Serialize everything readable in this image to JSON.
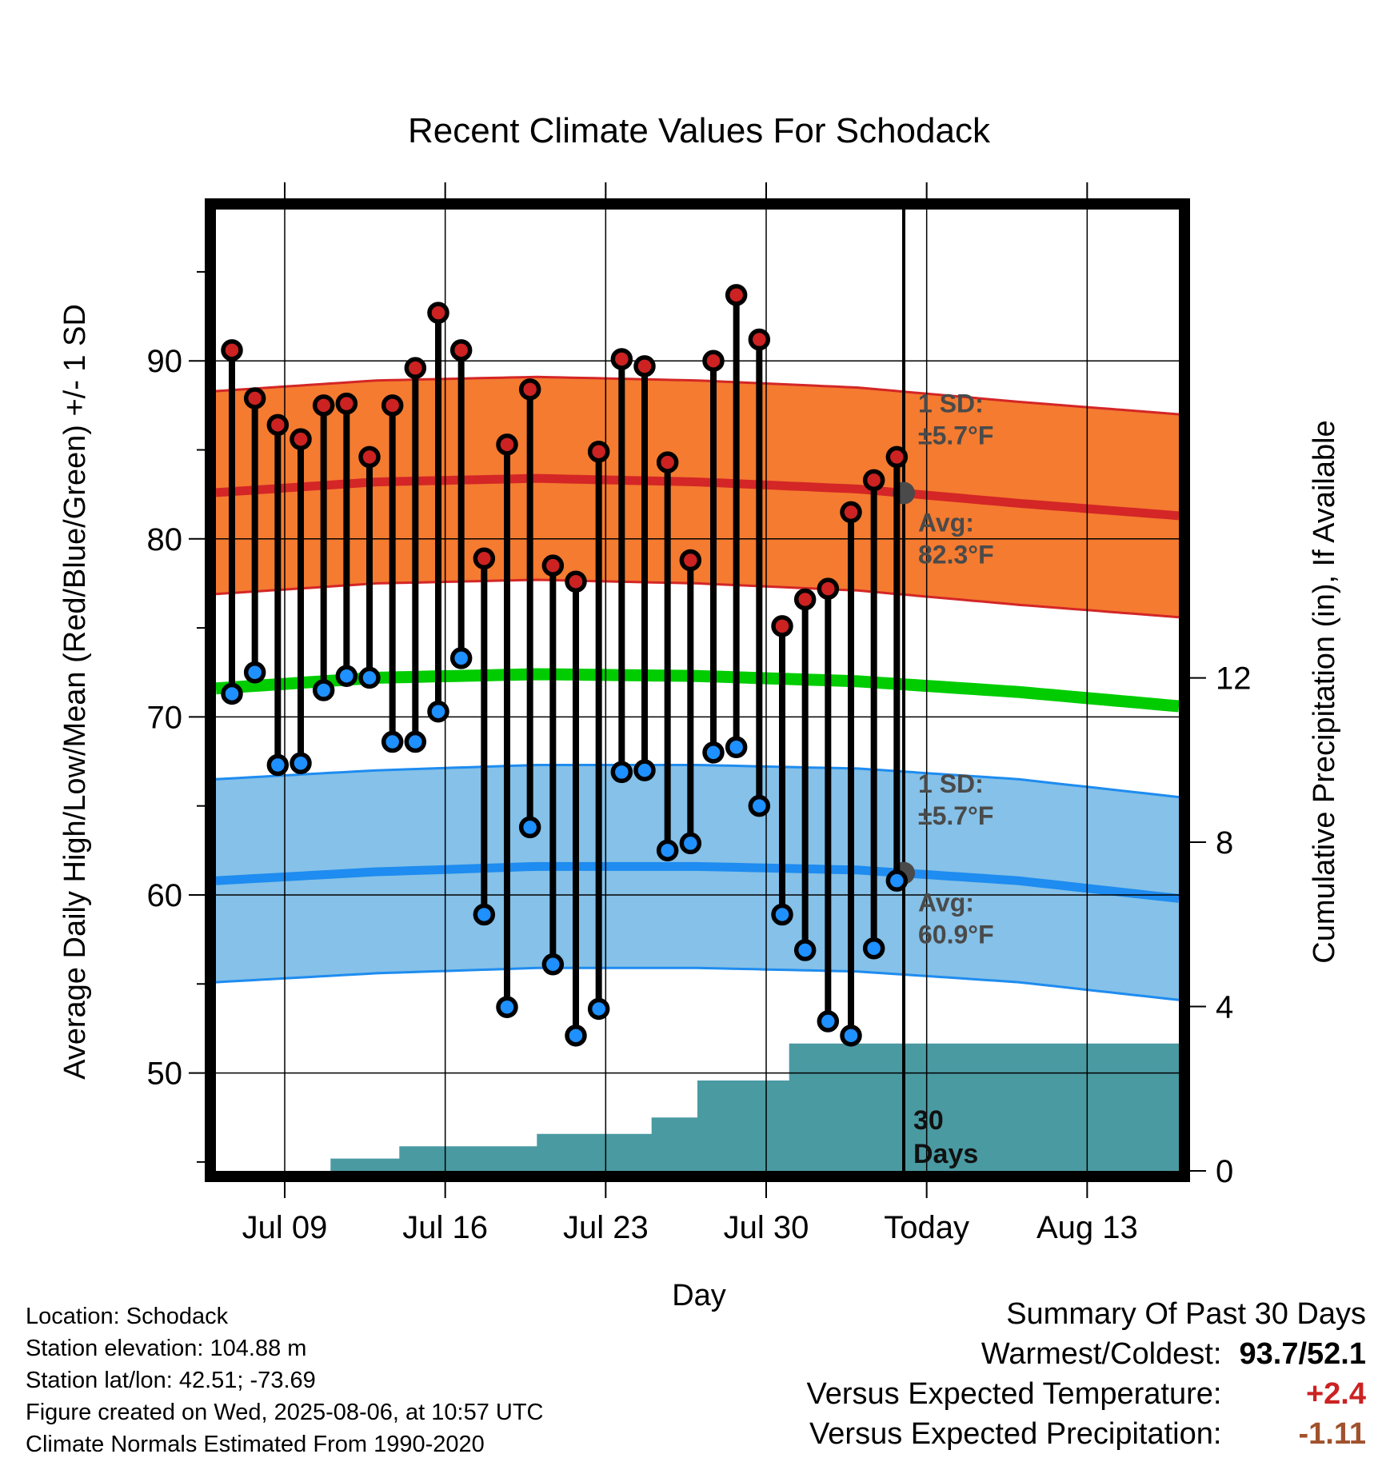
{
  "chart_data": {
    "type": "line",
    "title": "Recent Climate Values For Schodack",
    "xlabel": "Day",
    "ylabel": "Average Daily High/Low/Mean (Red/Blue/Green) +/- 1 SD",
    "y2label": "Cumulative Precipitation (in), If Available",
    "x_ticks": [
      "Jul 09",
      "Jul 16",
      "Jul 23",
      "Jul 30",
      "Today",
      "Aug 13"
    ],
    "y_ticks": [
      50,
      60,
      70,
      80,
      90
    ],
    "y2_ticks": [
      0,
      4,
      8,
      12
    ],
    "ylim": [
      44.5,
      98.5
    ],
    "y2lim": [
      0,
      23.4
    ],
    "grid": true,
    "today_index": 30,
    "days": [
      1,
      2,
      3,
      4,
      5,
      6,
      7,
      8,
      9,
      10,
      11,
      12,
      13,
      14,
      15,
      16,
      17,
      18,
      19,
      20,
      21,
      22,
      23,
      24,
      25,
      26,
      27,
      28,
      29,
      30
    ],
    "series": [
      {
        "name": "High",
        "color": "#cc2222",
        "values": [
          90.6,
          87.9,
          86.4,
          85.6,
          87.5,
          87.6,
          84.6,
          87.5,
          89.6,
          92.7,
          90.6,
          78.9,
          85.3,
          88.4,
          78.5,
          77.6,
          84.9,
          90.1,
          89.7,
          84.3,
          78.8,
          90.0,
          93.7,
          91.2,
          75.1,
          76.6,
          77.2,
          81.5,
          83.3,
          84.6
        ]
      },
      {
        "name": "Low",
        "color": "#1e90ff",
        "values": [
          71.3,
          72.5,
          67.3,
          67.4,
          71.5,
          72.3,
          72.2,
          68.6,
          68.6,
          70.3,
          73.3,
          58.9,
          53.7,
          63.8,
          56.1,
          52.1,
          53.6,
          66.9,
          67.0,
          62.5,
          62.9,
          68.0,
          68.3,
          65.0,
          58.9,
          56.9,
          52.9,
          52.1,
          57.0,
          60.8
        ]
      },
      {
        "name": "Normal High",
        "color": "#cc2222",
        "x": [
          0,
          7,
          14,
          21,
          28,
          35,
          42
        ],
        "values": [
          82.6,
          83.2,
          83.4,
          83.2,
          82.8,
          82.0,
          81.3
        ],
        "sd": 5.7
      },
      {
        "name": "Normal Mean",
        "color": "#00cc00",
        "x": [
          0,
          7,
          14,
          21,
          28,
          35,
          42
        ],
        "values": [
          71.6,
          72.2,
          72.4,
          72.3,
          72.0,
          71.4,
          70.6
        ]
      },
      {
        "name": "Normal Low",
        "color": "#1e90ff",
        "x": [
          0,
          7,
          14,
          21,
          28,
          35,
          42
        ],
        "values": [
          60.8,
          61.3,
          61.6,
          61.6,
          61.4,
          60.8,
          59.8
        ],
        "sd": 5.7
      }
    ],
    "precip_cumulative": [
      0,
      0,
      0,
      0,
      0,
      0.3,
      0.3,
      0.3,
      0.6,
      0.6,
      0.6,
      0.6,
      0.6,
      0.6,
      0.9,
      0.9,
      0.9,
      0.9,
      0.9,
      1.3,
      1.3,
      2.2,
      2.2,
      2.2,
      2.2,
      3.1,
      3.1,
      3.1,
      3.1,
      3.1,
      3.1
    ],
    "annotations": {
      "high_sd_label": "1 SD:",
      "high_sd_value": "±5.7°F",
      "high_avg_label": "Avg:",
      "high_avg_value": "82.3°F",
      "low_sd_label": "1 SD:",
      "low_sd_value": "±5.7°F",
      "low_avg_label": "Avg:",
      "low_avg_value": "60.9°F",
      "days_number": "30",
      "days_label": "Days"
    },
    "colors": {
      "high_band": "#f47b30",
      "high_line": "#d42626",
      "low_band": "#85c1e8",
      "low_line": "#1e8cf0",
      "mean_line": "#00cc00",
      "precip": "#4a9aa2",
      "avg_dot": "#4a4a4a",
      "high_dot": "#cc2222",
      "low_dot": "#1e90ff"
    }
  },
  "footer": {
    "location": "Location: Schodack",
    "elevation": "Station elevation: 104.88 m",
    "latlon": "Station lat/lon: 42.51; -73.69",
    "created": "Figure created on Wed, 2025-08-06, at 10:57 UTC",
    "normals": "Climate Normals Estimated From 1990-2020"
  },
  "summary": {
    "title": "Summary Of Past 30 Days",
    "warm_cold_label": "Warmest/Coldest:",
    "warm_cold_value": "93.7/52.1",
    "temp_label": "Versus Expected Temperature:",
    "temp_value": "+2.4",
    "temp_color": "#cc2222",
    "precip_label": "Versus Expected Precipitation:",
    "precip_value": "-1.11",
    "precip_color": "#a0522d"
  }
}
